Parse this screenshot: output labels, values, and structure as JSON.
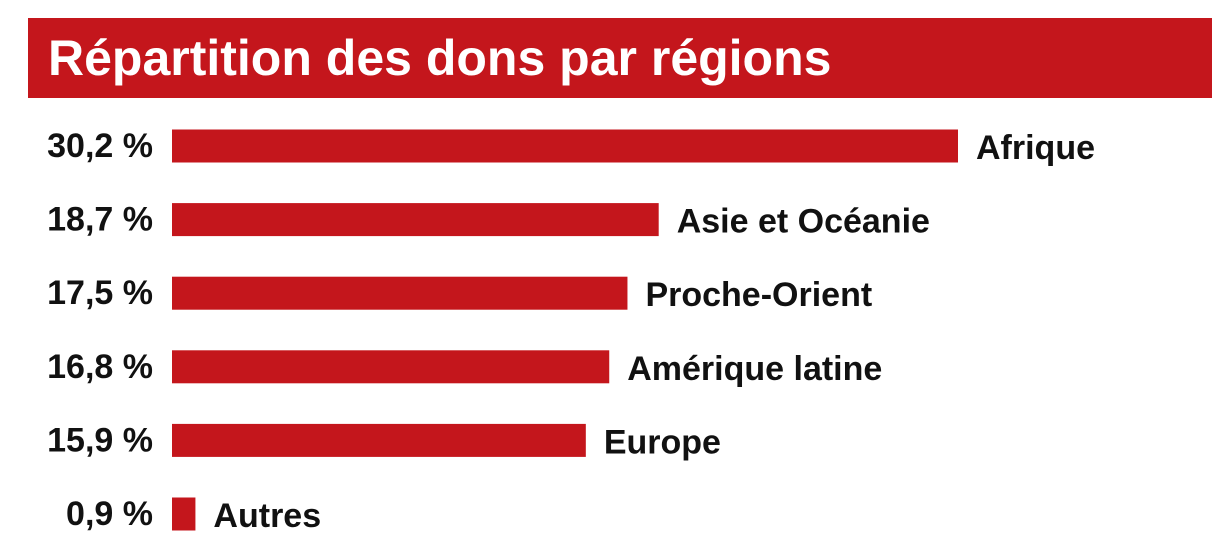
{
  "chart_data": {
    "type": "bar",
    "orientation": "horizontal",
    "title": "Répartition des dons par régions",
    "categories": [
      "Afrique",
      "Asie et Océanie",
      "Proche-Orient",
      "Amérique latine",
      "Europe",
      "Autres"
    ],
    "values": [
      30.2,
      18.7,
      17.5,
      16.8,
      15.9,
      0.9
    ],
    "value_labels": [
      "30,2 %",
      "18,7 %",
      "17,5 %",
      "16,8 %",
      "15,9 %",
      "0,9 %"
    ],
    "unit": "%",
    "xlim": [
      0,
      30.2
    ],
    "grid": false,
    "legend": "none",
    "colors": {
      "bar": "#c4161c",
      "title_background": "#c4161c",
      "title_text": "#ffffff",
      "labels": "#111111"
    }
  }
}
